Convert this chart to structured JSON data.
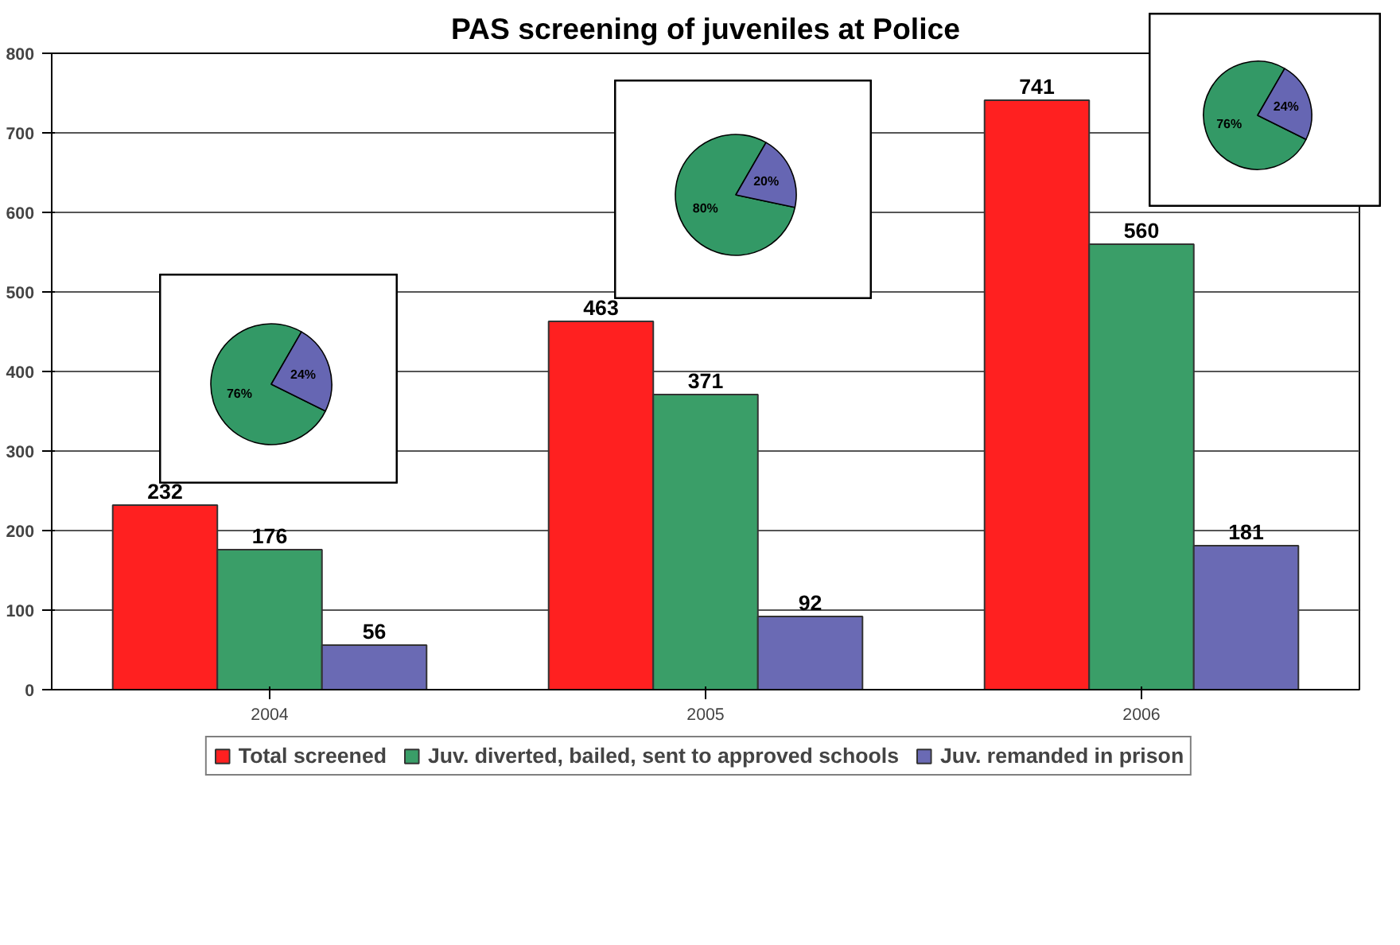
{
  "chart_data": [
    {
      "type": "bar",
      "title": "PAS screening of juveniles at Police",
      "categories": [
        "2004",
        "2005",
        "2006"
      ],
      "series": [
        {
          "name": "Total screened",
          "color": "#ff2020",
          "values": [
            232,
            463,
            741
          ]
        },
        {
          "name": "Juv. diverted, bailed, sent to approved schools",
          "color": "#3a9e68",
          "values": [
            176,
            371,
            560
          ]
        },
        {
          "name": "Juv. remanded in prison",
          "color": "#6a6ab4",
          "values": [
            56,
            92,
            181
          ]
        }
      ],
      "ylim": [
        0,
        800
      ],
      "yticks": [
        0,
        100,
        200,
        300,
        400,
        500,
        600,
        700,
        800
      ],
      "grid": "y",
      "legend": "bottom",
      "data_labels": true
    },
    {
      "type": "pie",
      "categories": [
        null,
        null
      ],
      "values": [
        76,
        24
      ],
      "colors": [
        "#339966",
        "#6666b3"
      ],
      "value_labels": [
        "76%",
        "24%"
      ]
    },
    {
      "type": "pie",
      "categories": [
        null,
        null
      ],
      "values": [
        80,
        20
      ],
      "colors": [
        "#339966",
        "#6666b3"
      ],
      "value_labels": [
        "80%",
        "20%"
      ]
    },
    {
      "type": "pie",
      "categories": [
        null,
        null
      ],
      "values": [
        76,
        24
      ],
      "colors": [
        "#339966",
        "#6666b3"
      ],
      "value_labels": [
        "76%",
        "24%"
      ]
    }
  ]
}
